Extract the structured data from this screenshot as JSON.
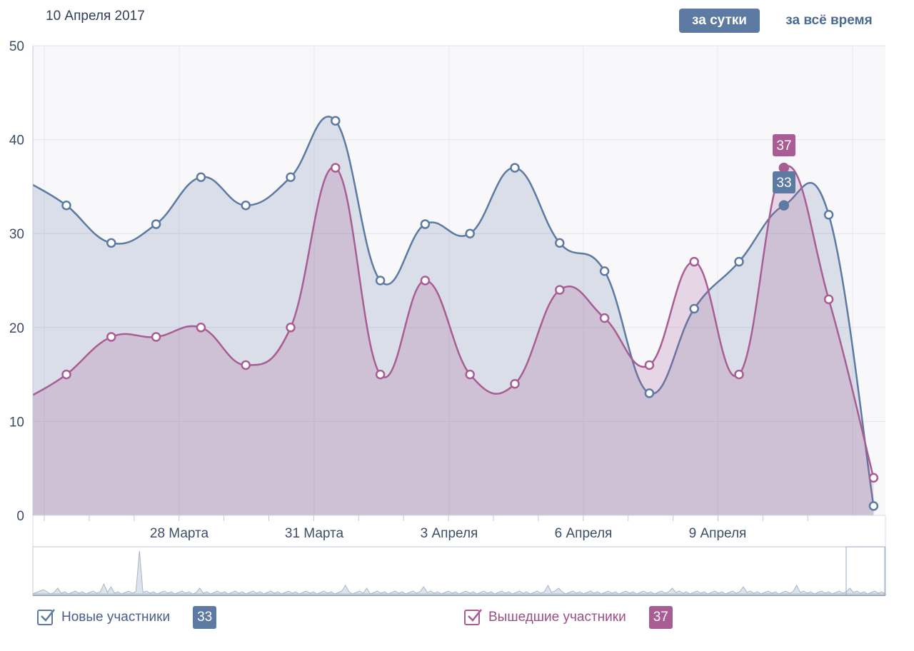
{
  "header": {
    "date": "10 Апреля 2017",
    "period_day": "за сутки",
    "period_all": "за всё время"
  },
  "legend": {
    "new_label": "Новые участники",
    "new_value": "33",
    "left_label": "Вышедшие участники",
    "left_value": "37"
  },
  "tooltip": {
    "new_value": "33",
    "left_value": "37"
  },
  "colors": {
    "new": "#5d7aa2",
    "left": "#a85d94"
  },
  "chart_data": {
    "type": "area",
    "x_tick_labels": [
      "28 Марта",
      "31 Марта",
      "3 Апреля",
      "6 Апреля",
      "9 Апреля"
    ],
    "y_ticks": [
      0,
      10,
      20,
      30,
      40,
      50
    ],
    "ylim": [
      0,
      50
    ],
    "grid": true,
    "series": [
      {
        "name": "Новые участники",
        "values": [
          33,
          29,
          31,
          36,
          33,
          36,
          42,
          25,
          31,
          30,
          37,
          29,
          26,
          13,
          22,
          27,
          33,
          32,
          1
        ]
      },
      {
        "name": "Вышедшие участники",
        "values": [
          15,
          19,
          19,
          20,
          16,
          20,
          37,
          15,
          25,
          15,
          14,
          24,
          21,
          16,
          27,
          15,
          37,
          23,
          4
        ]
      }
    ],
    "selected_index": 16
  }
}
